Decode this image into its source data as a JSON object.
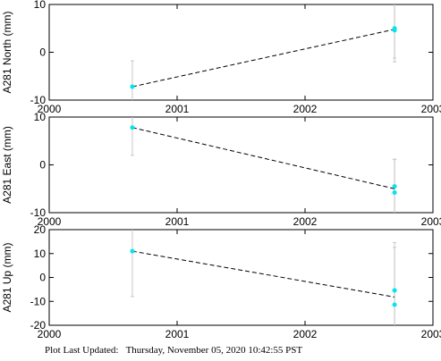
{
  "footer": {
    "label": "Plot Last Updated:",
    "timestamp": "Thursday, November 05, 2020 10:42:55 PST"
  },
  "colors": {
    "point": "#00e5ee",
    "errorbar": "#c8c8c8",
    "trend": "#000000",
    "frame": "#000000"
  },
  "chart_data": [
    {
      "type": "scatter",
      "ylabel": "A281 North (mm)",
      "xlim": [
        2000,
        2003
      ],
      "ylim": [
        -10,
        10
      ],
      "xticks": [
        2000,
        2001,
        2002,
        2003
      ],
      "yticks": [
        -10,
        0,
        10
      ],
      "points": [
        {
          "x": 2000.65,
          "y": -7.2,
          "err": 5.4
        },
        {
          "x": 2002.7,
          "y": 5.0,
          "err": 6.2
        },
        {
          "x": 2002.7,
          "y": 4.6,
          "err": 6.6
        }
      ],
      "trend": [
        [
          2000.65,
          -7.2
        ],
        [
          2002.7,
          4.8
        ]
      ]
    },
    {
      "type": "scatter",
      "ylabel": "A281 East (mm)",
      "xlim": [
        2000,
        2003
      ],
      "ylim": [
        -10,
        10
      ],
      "xticks": [
        2000,
        2001,
        2002,
        2003
      ],
      "yticks": [
        -10,
        0,
        10
      ],
      "points": [
        {
          "x": 2000.65,
          "y": 7.8,
          "err": 5.8
        },
        {
          "x": 2002.7,
          "y": -4.5,
          "err": 5.6
        },
        {
          "x": 2002.7,
          "y": -5.8,
          "err": 7.0
        }
      ],
      "trend": [
        [
          2000.65,
          7.8
        ],
        [
          2002.7,
          -5.0
        ]
      ]
    },
    {
      "type": "scatter",
      "ylabel": "A281 Up (mm)",
      "xlim": [
        2000,
        2003
      ],
      "ylim": [
        -20,
        20
      ],
      "xticks": [
        2000,
        2001,
        2002,
        2003
      ],
      "yticks": [
        -20,
        -10,
        0,
        10,
        20
      ],
      "points": [
        {
          "x": 2000.65,
          "y": 11.0,
          "err": 19.0
        },
        {
          "x": 2002.7,
          "y": -5.4,
          "err": 20.0
        },
        {
          "x": 2002.7,
          "y": -11.4,
          "err": 24.0
        }
      ],
      "trend": [
        [
          2000.65,
          11.0
        ],
        [
          2002.7,
          -8.2
        ]
      ]
    }
  ]
}
